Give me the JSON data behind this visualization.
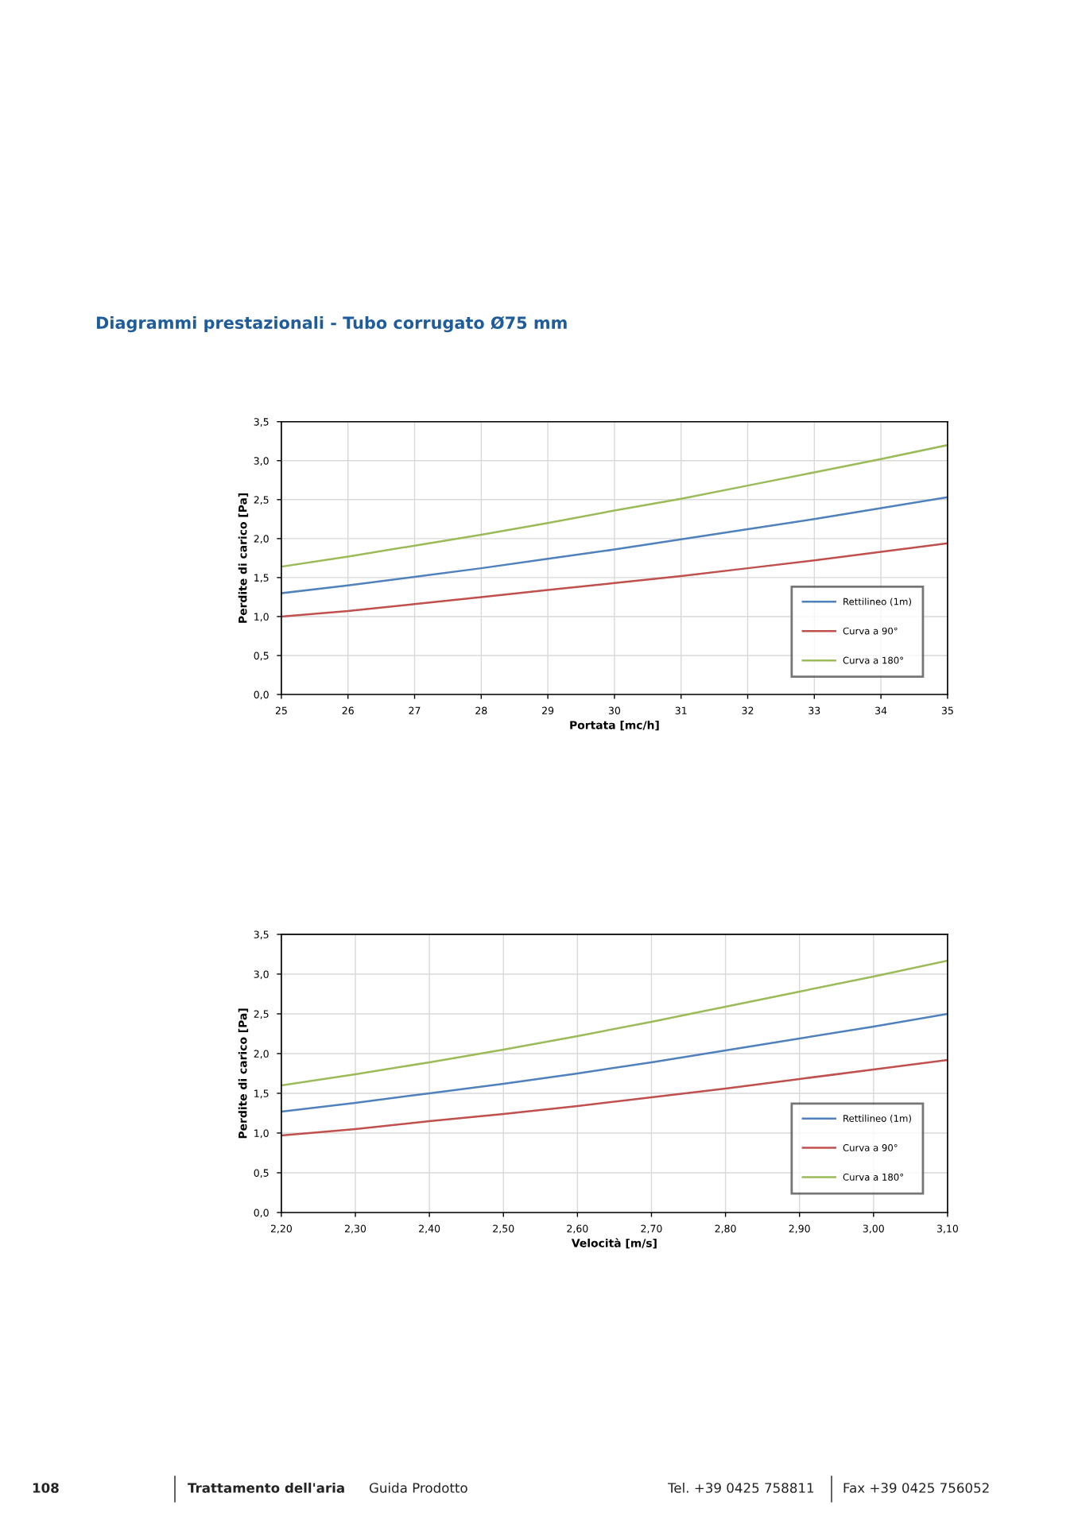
{
  "chart_data": [
    {
      "type": "line",
      "title": "Diagrammi prestazionali - Tubo corrugato Ø75 mm",
      "xlabel": "Portata [mc/h]",
      "ylabel": "Perdite di carico [Pa]",
      "x": [
        25,
        26,
        27,
        28,
        29,
        30,
        31,
        32,
        33,
        34,
        35
      ],
      "series": [
        {
          "name": "Rettilineo (1m)",
          "color": "#4f81bd",
          "values": [
            1.3,
            1.4,
            1.51,
            1.62,
            1.74,
            1.86,
            1.99,
            2.12,
            2.25,
            2.39,
            2.53
          ]
        },
        {
          "name": "Curva a 90°",
          "color": "#c0504d",
          "values": [
            1.0,
            1.07,
            1.16,
            1.25,
            1.34,
            1.43,
            1.52,
            1.62,
            1.72,
            1.83,
            1.94
          ]
        },
        {
          "name": "Curva a 180°",
          "color": "#9bbb59",
          "values": [
            1.64,
            1.77,
            1.91,
            2.05,
            2.2,
            2.36,
            2.51,
            2.68,
            2.85,
            3.02,
            3.2
          ]
        }
      ],
      "xlim": [
        25,
        35
      ],
      "xticks": [
        25,
        26,
        27,
        28,
        29,
        30,
        31,
        32,
        33,
        34,
        35
      ],
      "ylim": [
        0,
        3.5
      ],
      "yticks": [
        {
          "value": 0,
          "label": "0,0"
        },
        {
          "value": 0.5,
          "label": "0,5"
        },
        {
          "value": 1,
          "label": "1,0"
        },
        {
          "value": 1.5,
          "label": "1,5"
        },
        {
          "value": 2,
          "label": "2,0"
        },
        {
          "value": 2.5,
          "label": "2,5"
        },
        {
          "value": 3,
          "label": "3,0"
        },
        {
          "value": 3.5,
          "label": "3,5"
        }
      ],
      "grid": true,
      "legend": "right",
      "marker": "none",
      "line_style": "solid"
    },
    {
      "type": "line",
      "xlabel": "Velocità [m/s]",
      "ylabel": "Perdite di carico [Pa]",
      "x": [
        2.2,
        2.3,
        2.4,
        2.5,
        2.6,
        2.7,
        2.8,
        2.9,
        3.0,
        3.1
      ],
      "series": [
        {
          "name": "Rettilineo (1m)",
          "color": "#4f81bd",
          "values": [
            1.27,
            1.38,
            1.5,
            1.62,
            1.75,
            1.89,
            2.04,
            2.19,
            2.34,
            2.5
          ]
        },
        {
          "name": "Curva a 90°",
          "color": "#c0504d",
          "values": [
            0.97,
            1.05,
            1.15,
            1.24,
            1.34,
            1.45,
            1.56,
            1.68,
            1.8,
            1.92
          ]
        },
        {
          "name": "Curva a 180°",
          "color": "#9bbb59",
          "values": [
            1.6,
            1.74,
            1.89,
            2.05,
            2.22,
            2.4,
            2.59,
            2.78,
            2.97,
            3.17
          ]
        }
      ],
      "xlim": [
        2.2,
        3.1
      ],
      "xticks": [
        {
          "value": 2.2,
          "label": "2,20"
        },
        {
          "value": 2.3,
          "label": "2,30"
        },
        {
          "value": 2.4,
          "label": "2,40"
        },
        {
          "value": 2.5,
          "label": "2,50"
        },
        {
          "value": 2.6,
          "label": "2,60"
        },
        {
          "value": 2.7,
          "label": "2,70"
        },
        {
          "value": 2.8,
          "label": "2,80"
        },
        {
          "value": 2.9,
          "label": "2,90"
        },
        {
          "value": 3.0,
          "label": "3,00"
        },
        {
          "value": 3.1,
          "label": "3,10"
        }
      ],
      "ylim": [
        0,
        3.5
      ],
      "yticks": [
        {
          "value": 0,
          "label": "0,0"
        },
        {
          "value": 0.5,
          "label": "0,5"
        },
        {
          "value": 1,
          "label": "1,0"
        },
        {
          "value": 1.5,
          "label": "1,5"
        },
        {
          "value": 2,
          "label": "2,0"
        },
        {
          "value": 2.5,
          "label": "2,5"
        },
        {
          "value": 3,
          "label": "3,0"
        },
        {
          "value": 3.5,
          "label": "3,5"
        }
      ],
      "grid": true,
      "legend": "right",
      "marker": "none",
      "line_style": "solid",
      "annotations": [
        "108",
        "Trattamento dell'aria",
        "Guida Prodotto",
        "Tel. +39 0425 758811",
        "Fax +39 0425 756052"
      ]
    }
  ]
}
